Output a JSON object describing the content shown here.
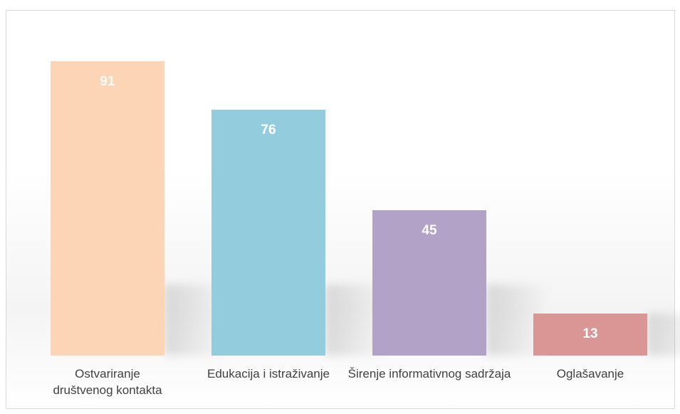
{
  "chart_data": {
    "type": "bar",
    "categories": [
      "Ostvariranje društvenog kontakta",
      "Edukacija i istraživanje",
      "Širenje informativnog sadržaja",
      "Oglašavanje"
    ],
    "values": [
      91,
      76,
      45,
      13
    ],
    "colors": [
      "#fbd5b5",
      "#93cddd",
      "#b3a2c7",
      "#d99694"
    ]
  }
}
